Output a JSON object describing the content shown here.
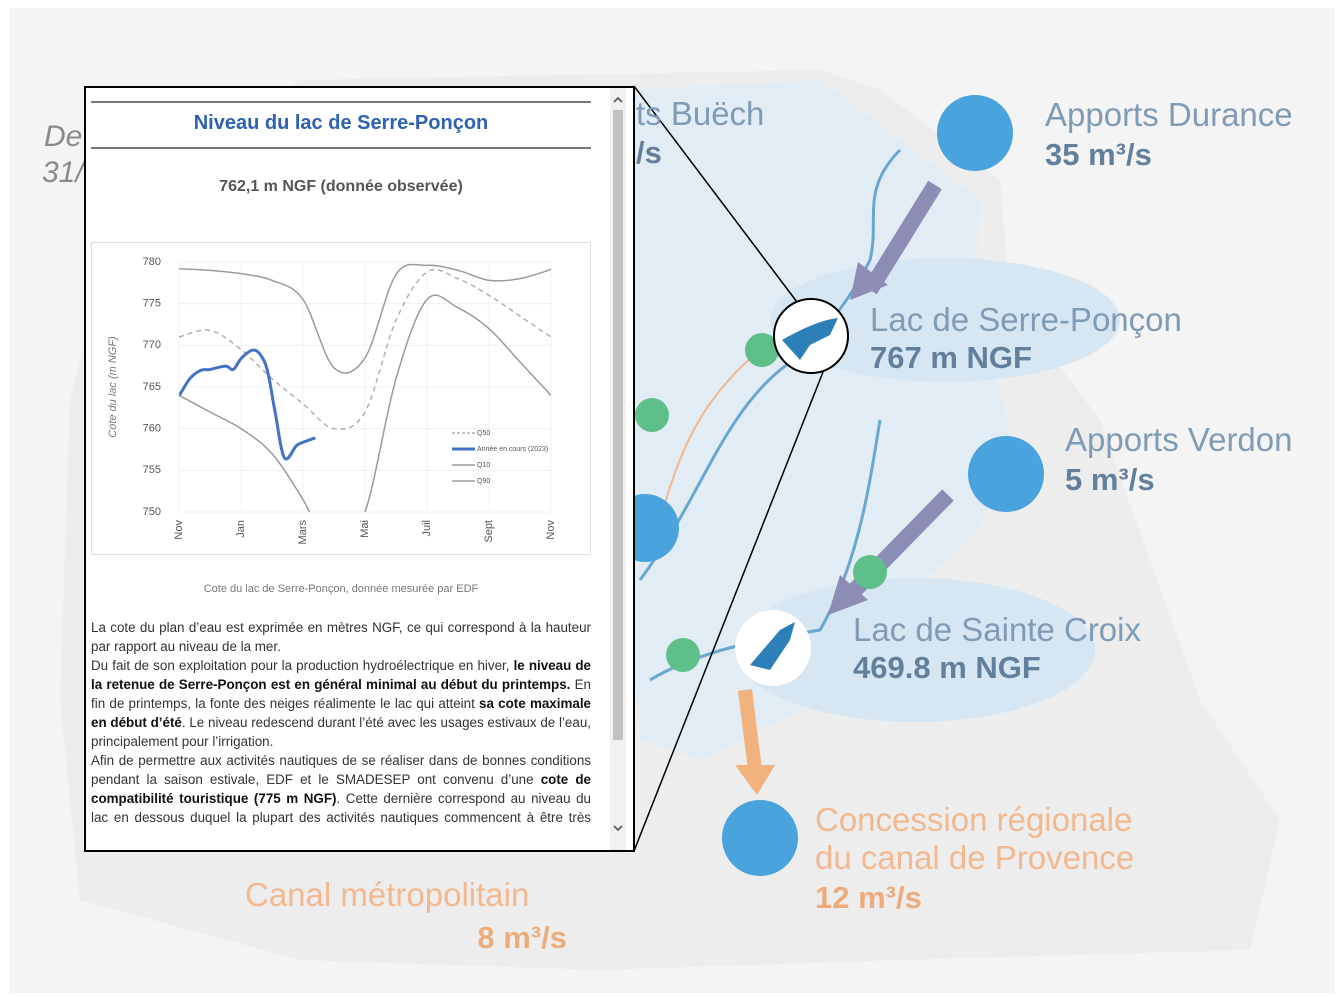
{
  "map": {
    "fragments": [
      "De",
      "31/",
      "ts Buëch",
      "/s"
    ],
    "durance": {
      "name": "Apports Durance",
      "flow": "35 m³/s"
    },
    "serre_poncon": {
      "name": "Lac de Serre-Ponçon",
      "level": "767 m NGF"
    },
    "verdon": {
      "name": "Apports Verdon",
      "flow": "5 m³/s"
    },
    "sainte_croix": {
      "name": "Lac de Sainte Croix",
      "level": "469.8 m NGF"
    },
    "provence": {
      "line1": "Concession régionale",
      "line2": "du canal de Provence",
      "flow": "12 m³/s"
    },
    "metropolitain": {
      "name": "Canal métropolitain",
      "flow": "8 m³/s"
    }
  },
  "popup": {
    "title": "Niveau du lac de Serre-Ponçon",
    "subtitle": "762,1 m NGF (donnée observée)",
    "caption": "Cote du lac de Serre-Ponçon, donnée mesurée par EDF",
    "paragraphs": [
      [
        {
          "text": "La cote du plan d’eau est exprimée en mètres NGF, ce qui correspond à la hauteur par rapport au niveau de la mer.",
          "bold": false
        }
      ],
      [
        {
          "text": "Du fait de son exploitation pour la production hydroélectrique en hiver, ",
          "bold": false
        },
        {
          "text": "le niveau de la retenue de Serre-Ponçon est en général minimal au début du printemps.",
          "bold": true
        },
        {
          "text": " En fin de printemps, la fonte des neiges réalimente le lac qui atteint ",
          "bold": false
        },
        {
          "text": "sa cote maximale en début d’été",
          "bold": true
        },
        {
          "text": ". Le niveau redescend durant l’été avec les usages estivaux de l’eau, principalement pour l’irrigation.",
          "bold": false
        }
      ],
      [
        {
          "text": "Afin de permettre aux activités nautiques de se réaliser dans de bonnes conditions pendant la saison estivale, EDF et le SMADESEP ont convenu d’une ",
          "bold": false
        },
        {
          "text": "cote de compatibilité touristique (775 m NGF)",
          "bold": true
        },
        {
          "text": ". Cette dernière correspond au niveau du lac en dessous duquel la plupart des activités nautiques commencent à être très impactées voire réduites. Dans la mesure du possible, elle doit être",
          "bold": false
        }
      ]
    ]
  },
  "chart_data": {
    "type": "line",
    "y_label": "Cote du lac (m NGF)",
    "x": [
      0,
      1,
      2,
      3,
      4,
      5,
      6,
      7,
      8,
      9,
      10,
      11,
      12
    ],
    "xlim": [
      0,
      12
    ],
    "xticks": [
      {
        "value": 0,
        "label": "Nov"
      },
      {
        "value": 2,
        "label": "Jan"
      },
      {
        "value": 4,
        "label": "Mars"
      },
      {
        "value": 6,
        "label": "Mai"
      },
      {
        "value": 8,
        "label": "Juil"
      },
      {
        "value": 10,
        "label": "Sept"
      },
      {
        "value": 12,
        "label": "Nov"
      }
    ],
    "ylim": [
      750,
      780
    ],
    "yticks": [
      750,
      755,
      760,
      765,
      770,
      775,
      780
    ],
    "grid": true,
    "legend": "right",
    "series": [
      {
        "name": "Q50",
        "color": "#b0b0b0",
        "dashed": true,
        "values": [
          771,
          771.8,
          769.5,
          766,
          763,
          760,
          762,
          773,
          778.8,
          778,
          776,
          773.5,
          771
        ]
      },
      {
        "name": "Année en cours (2023)",
        "color": "#4472c4",
        "x": [
          0,
          0.35,
          0.7,
          1,
          1.5,
          1.75,
          2,
          2.35,
          2.6,
          2.85,
          3.1,
          3.4,
          3.8,
          4.1,
          4.4
        ],
        "values": [
          763.9,
          766,
          767,
          767.1,
          767.5,
          767.1,
          768.4,
          769.4,
          769,
          767,
          762,
          756.5,
          758,
          758.5,
          758.9
        ]
      },
      {
        "name": "Q10",
        "color": "#9a9a9a",
        "values": [
          764,
          762,
          760,
          757,
          751.5,
          745,
          750,
          766,
          775.5,
          774.5,
          772,
          768,
          764
        ]
      },
      {
        "name": "Q90",
        "color": "#9a9a9a",
        "values": [
          779.2,
          779,
          778.6,
          777.8,
          775.5,
          767.3,
          768.5,
          778.5,
          779.6,
          779,
          777.8,
          778,
          779.1
        ]
      }
    ]
  }
}
